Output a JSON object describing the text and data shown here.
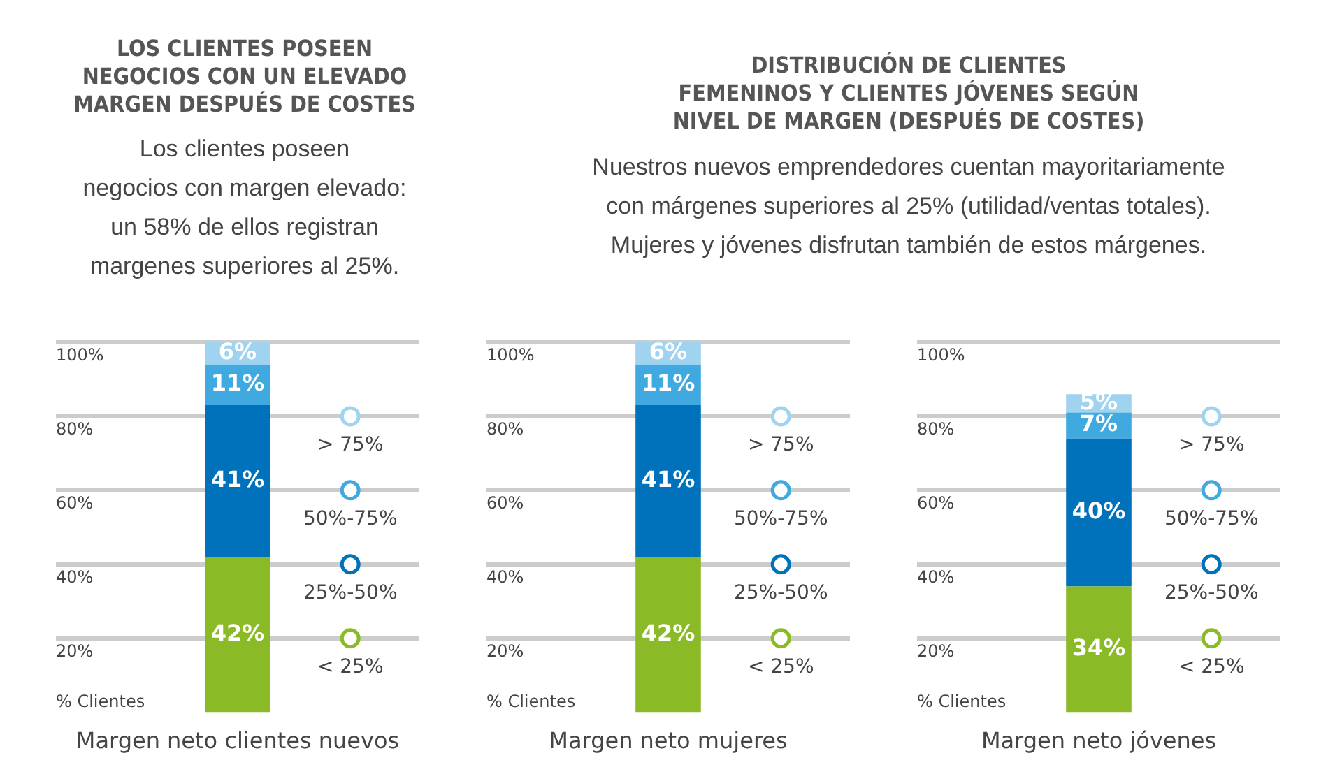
{
  "chart_data": [
    {
      "type": "bar",
      "title": "LOS CLIENTES POSEEN\nNEGOCIOS CON UN ELEVADO\nMARGEN DESPUÉS DE COSTES",
      "subtitle": "Los clientes poseen\nnegocios con margen elevado:\nun 58% de ellos registran\nmargenes superiores al 25%.",
      "xlabel": "Margen neto clientes nuevos",
      "ylabel": "% Clientes",
      "categories": [
        null
      ],
      "stacked": true,
      "data_labels": true,
      "grid": "y",
      "legend": "right",
      "marker": "circle",
      "ylim": [
        0,
        100
      ],
      "yticks": [
        {
          "value": 20,
          "label": "20%"
        },
        {
          "value": 40,
          "label": "40%"
        },
        {
          "value": 60,
          "label": "60%"
        },
        {
          "value": 80,
          "label": "80%"
        },
        {
          "value": 100,
          "label": "100%"
        }
      ],
      "series": [
        {
          "name": "< 25%",
          "color": "#8aba26",
          "values": [
            42
          ],
          "value_labels": [
            "42%"
          ]
        },
        {
          "name": "25%-50%",
          "color": "#0072bc",
          "values": [
            41
          ],
          "value_labels": [
            "41%"
          ]
        },
        {
          "name": "50%-75%",
          "color": "#3fa9e0",
          "values": [
            11
          ],
          "value_labels": [
            "11%"
          ]
        },
        {
          "name": "> 75%",
          "color": "#9fd3f0",
          "values": [
            6
          ],
          "value_labels": [
            "6%"
          ]
        }
      ]
    },
    {
      "type": "bar",
      "title": "DISTRIBUCIÓN DE CLIENTES\nFEMENINOS Y CLIENTES JÓVENES SEGÚN\nNIVEL DE MARGEN (DESPUÉS DE COSTES)",
      "subtitle": "Nuestros nuevos emprendedores cuentan mayoritariamente\ncon márgenes superiores al 25% (utilidad/ventas totales).\nMujeres y jóvenes disfrutan también de estos márgenes.",
      "xlabel": "Margen neto mujeres",
      "ylabel": "% Clientes",
      "categories": [
        null
      ],
      "stacked": true,
      "data_labels": true,
      "grid": "y",
      "legend": "right",
      "marker": "circle",
      "ylim": [
        0,
        100
      ],
      "yticks": [
        {
          "value": 20,
          "label": "20%"
        },
        {
          "value": 40,
          "label": "40%"
        },
        {
          "value": 60,
          "label": "60%"
        },
        {
          "value": 80,
          "label": "80%"
        },
        {
          "value": 100,
          "label": "100%"
        }
      ],
      "series": [
        {
          "name": "< 25%",
          "color": "#8aba26",
          "values": [
            42
          ],
          "value_labels": [
            "42%"
          ]
        },
        {
          "name": "25%-50%",
          "color": "#0072bc",
          "values": [
            41
          ],
          "value_labels": [
            "41%"
          ]
        },
        {
          "name": "50%-75%",
          "color": "#3fa9e0",
          "values": [
            11
          ],
          "value_labels": [
            "11%"
          ]
        },
        {
          "name": "> 75%",
          "color": "#9fd3f0",
          "values": [
            6
          ],
          "value_labels": [
            "6%"
          ]
        }
      ]
    },
    {
      "type": "bar",
      "xlabel": "Margen neto jóvenes",
      "ylabel": "% Clientes",
      "categories": [
        null
      ],
      "stacked": true,
      "data_labels": true,
      "grid": "y",
      "legend": "right",
      "marker": "circle",
      "ylim": [
        0,
        100
      ],
      "yticks": [
        {
          "value": 20,
          "label": "20%"
        },
        {
          "value": 40,
          "label": "40%"
        },
        {
          "value": 60,
          "label": "60%"
        },
        {
          "value": 80,
          "label": "80%"
        },
        {
          "value": 100,
          "label": "100%"
        }
      ],
      "series": [
        {
          "name": "< 25%",
          "color": "#8aba26",
          "values": [
            34
          ],
          "value_labels": [
            "34%"
          ]
        },
        {
          "name": "25%-50%",
          "color": "#0072bc",
          "values": [
            40
          ],
          "value_labels": [
            "40%"
          ]
        },
        {
          "name": "50%-75%",
          "color": "#3fa9e0",
          "values": [
            7
          ],
          "value_labels": [
            "7%"
          ]
        },
        {
          "name": "> 75%",
          "color": "#9fd3f0",
          "values": [
            5
          ],
          "value_labels": [
            "5%"
          ]
        }
      ]
    }
  ]
}
